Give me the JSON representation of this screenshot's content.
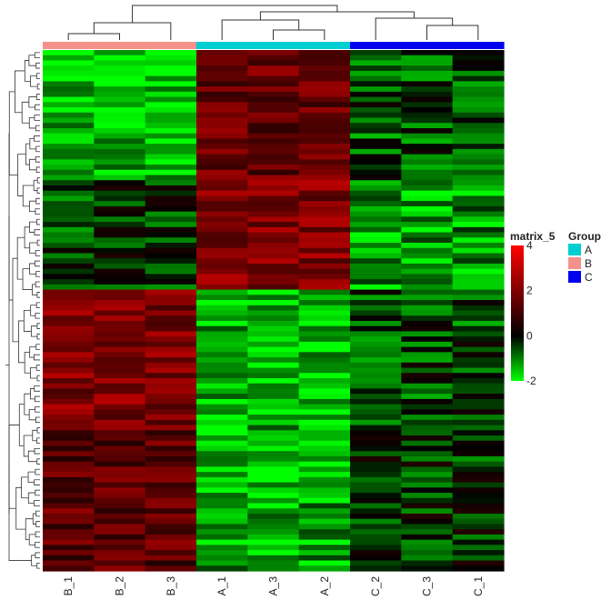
{
  "chart_data": {
    "type": "heatmap",
    "title": "",
    "columns": [
      "B_1",
      "B_2",
      "B_3",
      "A_1",
      "A_3",
      "A_2",
      "C_2",
      "C_3",
      "C_1"
    ],
    "column_groups": [
      "B",
      "B",
      "B",
      "A",
      "A",
      "A",
      "C",
      "C",
      "C"
    ],
    "row_count": 100,
    "group_profile": {
      "rows_1_25": {
        "B": -1.6,
        "A": 1.6,
        "C": -0.6
      },
      "rows_26_46": {
        "B": -0.4,
        "A": 2.0,
        "C": -1.2
      },
      "rows_47_73": {
        "B": 2.0,
        "A": -1.5,
        "C": -0.5
      },
      "rows_74_100": {
        "B": 1.4,
        "A": -1.4,
        "C": -0.3
      }
    },
    "colorbar": {
      "title": "matrix_5",
      "ticks": [
        4,
        2,
        0,
        -2
      ],
      "range": [
        -2,
        4
      ],
      "colors": {
        "low": "#00ff00",
        "mid": "#000000",
        "high": "#ff0000"
      }
    },
    "group_legend": {
      "title": "Group",
      "entries": [
        {
          "label": "A",
          "color": "#00ced1"
        },
        {
          "label": "B",
          "color": "#f4918a"
        },
        {
          "label": "C",
          "color": "#0000ee"
        }
      ]
    },
    "column_dendrogram": true,
    "row_dendrogram": true
  }
}
